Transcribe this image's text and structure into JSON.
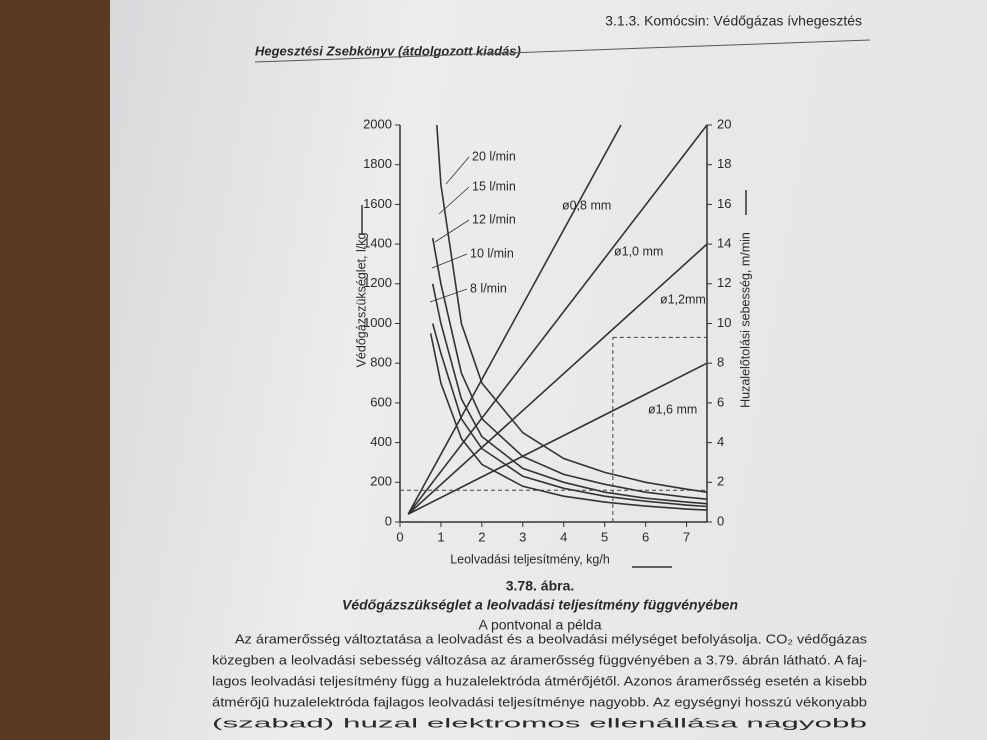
{
  "header": {
    "left": "Hegesztési Zsebkönyv (átdolgozott kiadás)",
    "right": "3.1.3. Komócsin: Védőgázas ívhegesztés"
  },
  "chart_data": {
    "type": "line",
    "ylabel": "Védőgázszükséglet, l/kg",
    "y2label": "Huzalelőtolási sebesség, m/min",
    "xlabel": "Leolvadási teljesítmény, kg/h",
    "xlim": [
      0,
      7.5
    ],
    "xticks": [
      0,
      1,
      2,
      3,
      4,
      5,
      6,
      7
    ],
    "ylim": [
      0,
      2000
    ],
    "yticks": [
      0,
      200,
      400,
      600,
      800,
      1000,
      1200,
      1400,
      1600,
      1800,
      2000
    ],
    "y2lim": [
      0,
      20
    ],
    "y2ticks": [
      0,
      2,
      4,
      6,
      8,
      10,
      12,
      14,
      16,
      18,
      20
    ],
    "series": [
      {
        "name": "20 l/min",
        "color": "#333333",
        "axis": "y",
        "x": [
          0.9,
          1,
          1.5,
          2,
          3,
          4,
          5,
          6,
          7,
          7.5
        ],
        "values": [
          2000,
          1700,
          1000,
          700,
          450,
          320,
          250,
          200,
          165,
          150
        ]
      },
      {
        "name": "15 l/min",
        "color": "#333333",
        "axis": "y",
        "x": [
          0.8,
          1,
          1.5,
          2,
          3,
          4,
          5,
          6,
          7,
          7.5
        ],
        "values": [
          1430,
          1200,
          750,
          520,
          330,
          240,
          190,
          150,
          125,
          115
        ]
      },
      {
        "name": "12 l/min",
        "color": "#333333",
        "axis": "y",
        "x": [
          0.8,
          1,
          1.5,
          2,
          3,
          4,
          5,
          6,
          7,
          7.5
        ],
        "values": [
          1200,
          1000,
          620,
          430,
          270,
          200,
          150,
          120,
          100,
          92
        ]
      },
      {
        "name": "10 l/min",
        "color": "#333333",
        "axis": "y",
        "x": [
          0.8,
          1,
          1.5,
          2,
          3,
          4,
          5,
          6,
          7,
          7.5
        ],
        "values": [
          1000,
          850,
          520,
          370,
          230,
          170,
          130,
          105,
          85,
          78
        ]
      },
      {
        "name": "8 l/min",
        "color": "#333333",
        "axis": "y",
        "x": [
          0.75,
          1,
          1.5,
          2,
          3,
          4,
          5,
          6,
          7,
          7.5
        ],
        "values": [
          950,
          700,
          420,
          290,
          180,
          130,
          100,
          80,
          65,
          60
        ]
      },
      {
        "name": "ø0,8 mm",
        "color": "#333333",
        "axis": "y2",
        "x": [
          0.2,
          5.4
        ],
        "values": [
          0.4,
          20
        ]
      },
      {
        "name": "ø1,0 mm",
        "color": "#333333",
        "axis": "y2",
        "x": [
          0.2,
          7.5
        ],
        "values": [
          0.4,
          20
        ]
      },
      {
        "name": "ø1,2mm",
        "color": "#333333",
        "axis": "y2",
        "x": [
          0.2,
          7.5
        ],
        "values": [
          0.4,
          14
        ]
      },
      {
        "name": "ø1,6 mm",
        "color": "#333333",
        "axis": "y2",
        "x": [
          0.2,
          7.5
        ],
        "values": [
          0.4,
          8
        ]
      }
    ],
    "example": {
      "x": 5.2,
      "y2": 9.3,
      "y": 160
    }
  },
  "caption": {
    "number": "3.78. ábra.",
    "title": "Védőgázszükséglet a leolvadási teljesítmény függvényében",
    "note": "A pontvonal a példa"
  },
  "body": [
    "Az áramerősség változtatása a leolvadást és a beolvadási mélységet befolyásolja. CO₂ védőgázas",
    "közegben a leolvadási sebesség változása az áramerősség függvényében a 3.79. ábrán látható. A faj-",
    "lagos leolvadási teljesítmény függ a huzalelektróda átmérőjétől. Azonos áramerősség esetén a kisebb",
    "átmérőjű huzalelektróda fajlagos leolvadási teljesítménye nagyobb. Az egységnyi hosszú vékonyabb",
    "(szabad) huzal elektromos ellenállása nagyobb"
  ]
}
